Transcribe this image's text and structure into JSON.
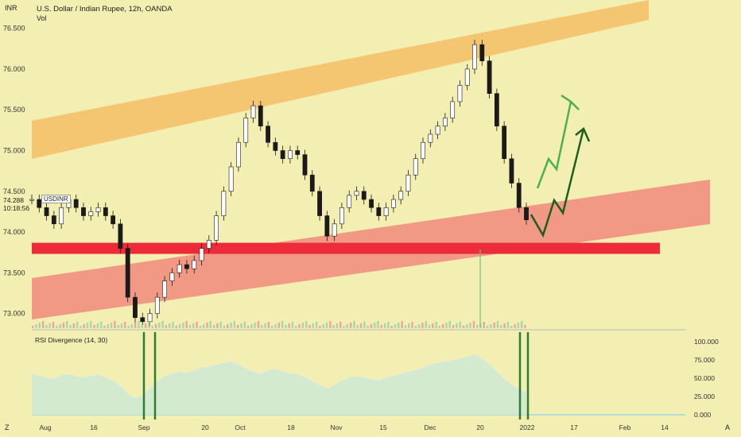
{
  "header": {
    "currency": "INR",
    "title": "U.S. Dollar / Indian Rupee, 12h, OANDA",
    "vol_label": "Vol",
    "indicator_label": "RSI Divergence (14, 30)",
    "symbol_tag": "USDINR",
    "last_price": "74.288",
    "countdown": "10:18:56",
    "corner_left": "Z",
    "corner_right": "A"
  },
  "colors": {
    "background": "#f3eeb1",
    "up_channel": "#f5c16b",
    "down_channel": "#f08a7e",
    "support": "#ee2b3b",
    "candle": "#1a1a1a",
    "arrow_light": "#4caf50",
    "arrow_dark": "#1b5e20",
    "rsi_fill": "#cfe9d3",
    "rsi_line": "#c9e6f2",
    "divergence_marker": "#2e7d32"
  },
  "chart_data": {
    "type": "line",
    "price_axis_ticks": [
      "76.500",
      "76.000",
      "75.500",
      "75.000",
      "74.500",
      "74.000",
      "73.500",
      "73.000"
    ],
    "price_axis_values": [
      76.5,
      76.0,
      75.5,
      75.0,
      74.5,
      74.0,
      73.5,
      73.0
    ],
    "ylim": [
      72.85,
      76.75
    ],
    "time_axis_labels": [
      "Aug",
      "16",
      "Sep",
      "20",
      "Oct",
      "18",
      "Nov",
      "15",
      "Dec",
      "20",
      "2022",
      "17",
      "Feb",
      "14"
    ],
    "rsi_axis_ticks": [
      "100.000",
      "75.000",
      "50.000",
      "25.000",
      "0.000"
    ],
    "rsi_ylim": [
      0,
      100
    ],
    "series": [
      {
        "values": [
          74.4,
          74.3,
          74.2,
          74.1,
          74.3,
          74.4,
          74.3,
          74.2,
          74.25,
          74.3,
          74.2,
          74.1,
          73.8,
          73.2,
          72.95,
          72.9,
          73.0,
          73.2,
          73.4,
          73.5,
          73.6,
          73.55,
          73.65,
          73.8,
          73.9,
          74.2,
          74.5,
          74.8,
          75.1,
          75.4,
          75.55,
          75.3,
          75.1,
          75.0,
          74.9,
          75.0,
          74.95,
          74.7,
          74.5,
          74.2,
          73.95,
          74.1,
          74.3,
          74.45,
          74.5,
          74.4,
          74.3,
          74.2,
          74.3,
          74.4,
          74.5,
          74.7,
          74.9,
          75.1,
          75.2,
          75.3,
          75.4,
          75.6,
          75.8,
          76.0,
          76.3,
          76.1,
          75.7,
          75.3,
          74.9,
          74.6,
          74.3,
          74.15
        ],
        "rsi_values": [
          55,
          52,
          50,
          48,
          53,
          55,
          52,
          50,
          52,
          54,
          50,
          46,
          38,
          28,
          22,
          25,
          35,
          45,
          52,
          55,
          58,
          56,
          60,
          63,
          65,
          68,
          70,
          72,
          68,
          62,
          58,
          55,
          60,
          62,
          58,
          56,
          55,
          50,
          45,
          40,
          35,
          40,
          46,
          50,
          52,
          50,
          48,
          46,
          50,
          52,
          55,
          58,
          60,
          64,
          68,
          70,
          72,
          74,
          76,
          78,
          82,
          76,
          68,
          58,
          48,
          40,
          34,
          30
        ]
      }
    ],
    "annotations": {
      "ascending_channel_top": true,
      "ascending_channel_bottom": true,
      "horizontal_support": 73.8,
      "projection_arrows": 2,
      "rsi_divergence_markers": 2
    },
    "grid": false
  }
}
